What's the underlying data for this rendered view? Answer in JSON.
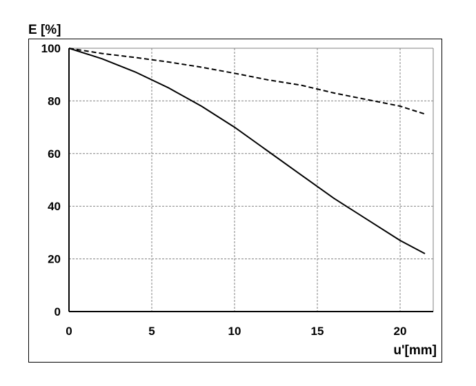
{
  "chart_data": {
    "type": "line",
    "title": "",
    "ylabel": "E [%]",
    "xlabel": "u'[mm]",
    "xlim": [
      0,
      22
    ],
    "ylim": [
      0,
      100
    ],
    "xticks": [
      0,
      5,
      10,
      15,
      20
    ],
    "yticks": [
      0,
      20,
      40,
      60,
      80,
      100
    ],
    "xtick_labels": [
      "0",
      "5",
      "10",
      "15",
      "20"
    ],
    "ytick_labels": [
      "0",
      "20",
      "40",
      "60",
      "80",
      "100"
    ],
    "grid": true,
    "legend": "none",
    "colors": {
      "line": "#000000",
      "grid": "#808080",
      "frame": "#000000"
    },
    "series": [
      {
        "style": "solid",
        "x": [
          0,
          2,
          4,
          6,
          8,
          10,
          12,
          14,
          16,
          18,
          20,
          21.5
        ],
        "y": [
          100,
          96,
          91,
          85,
          78,
          70,
          61,
          52,
          43,
          35,
          27,
          22
        ]
      },
      {
        "style": "dashed",
        "x": [
          0,
          2,
          4,
          6,
          8,
          10,
          12,
          14,
          16,
          18,
          20,
          21.5
        ],
        "y": [
          100,
          98,
          96.5,
          94.8,
          92.8,
          90.5,
          88,
          86,
          83,
          80.5,
          78,
          75
        ]
      }
    ]
  }
}
